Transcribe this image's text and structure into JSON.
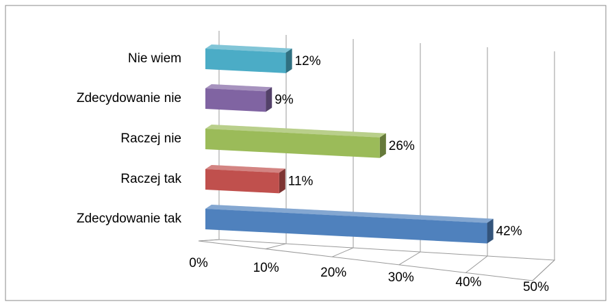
{
  "chart_data": {
    "type": "bar3d_horizontal",
    "categories": [
      "Zdecydowanie tak",
      "Raczej tak",
      "Raczej nie",
      "Zdecydowanie nie",
      "Nie wiem"
    ],
    "values": [
      42,
      11,
      26,
      9,
      12
    ],
    "value_labels": [
      "42%",
      "11%",
      "26%",
      "9%",
      "12%"
    ],
    "colors": [
      "#4f81bd",
      "#c0504d",
      "#9bbb59",
      "#8064a2",
      "#4bacc6"
    ],
    "xlim": [
      0,
      50
    ],
    "xticks": [
      {
        "value": 0,
        "label": "0%"
      },
      {
        "value": 10,
        "label": "10%"
      },
      {
        "value": 20,
        "label": "20%"
      },
      {
        "value": 30,
        "label": "30%"
      },
      {
        "value": 40,
        "label": "40%"
      },
      {
        "value": 50,
        "label": "50%"
      }
    ],
    "grid": true
  }
}
